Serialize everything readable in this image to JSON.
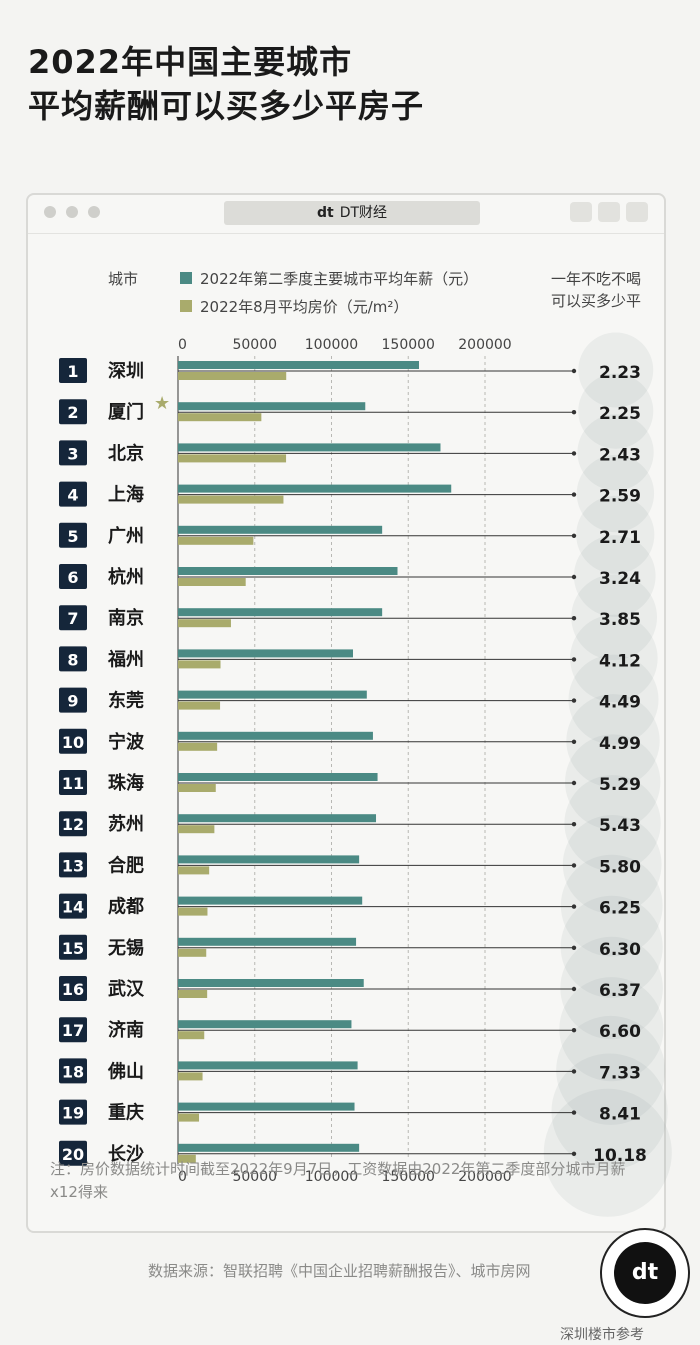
{
  "title_line1": "2022年中国主要城市",
  "title_line2": "平均薪酬可以买多少平房子",
  "window": {
    "logo_mark": "dt",
    "logo_text": "DT财经"
  },
  "chart_data": {
    "type": "bar",
    "legend_city_label": "城市",
    "legend_right_line1": "一年不吃不喝",
    "legend_right_line2": "可以买多少平",
    "ticks": [
      "0",
      "50000",
      "100000",
      "150000",
      "200000"
    ],
    "xlim": [
      0,
      200000
    ],
    "categories": [
      "深圳",
      "厦门",
      "北京",
      "上海",
      "广州",
      "杭州",
      "南京",
      "福州",
      "东莞",
      "宁波",
      "珠海",
      "苏州",
      "合肥",
      "成都",
      "无锡",
      "武汉",
      "济南",
      "佛山",
      "重庆",
      "长沙"
    ],
    "ranks": [
      "1",
      "2",
      "3",
      "4",
      "5",
      "6",
      "7",
      "8",
      "9",
      "10",
      "11",
      "12",
      "13",
      "14",
      "15",
      "16",
      "17",
      "18",
      "19",
      "20"
    ],
    "series": [
      {
        "name": "2022年第二季度主要城市平均年薪（元）",
        "color": "#4b8a84",
        "values": [
          157000,
          122000,
          171000,
          178000,
          133000,
          143000,
          133000,
          114000,
          123000,
          127000,
          130000,
          129000,
          118000,
          120000,
          116000,
          121000,
          113000,
          117000,
          115000,
          118000
        ]
      },
      {
        "name": "2022年8月平均房价（元/m²）",
        "color": "#a9ab6c",
        "values": [
          70500,
          54300,
          70400,
          68700,
          49100,
          44100,
          34500,
          27700,
          27400,
          25500,
          24600,
          23700,
          20300,
          19200,
          18400,
          19000,
          17100,
          16000,
          13700,
          11600
        ]
      }
    ],
    "ratios": [
      "2.23",
      "2.25",
      "2.43",
      "2.59",
      "2.71",
      "3.24",
      "3.85",
      "4.12",
      "4.49",
      "4.99",
      "5.29",
      "5.43",
      "5.80",
      "6.25",
      "6.30",
      "6.37",
      "6.60",
      "7.33",
      "8.41",
      "10.18"
    ],
    "ratio_values": [
      2.23,
      2.25,
      2.43,
      2.59,
      2.71,
      3.24,
      3.85,
      4.12,
      4.49,
      4.99,
      5.29,
      5.43,
      5.8,
      6.25,
      6.3,
      6.37,
      6.6,
      7.33,
      8.41,
      10.18
    ],
    "colors": {
      "teal": "#4b8a84",
      "olive": "#a9ab6c",
      "rank_bg": "#15263a",
      "circle": "#8fa3a3"
    }
  },
  "footnote": "注：房价数据统计时间截至2022年9月7日，工资数据由2022年第二季度部分城市月薪x12得来",
  "source": "数据来源：智联招聘《中国企业招聘薪酬报告》、城市房网",
  "badge_text": "dt",
  "weibo": "深圳楼市参考"
}
